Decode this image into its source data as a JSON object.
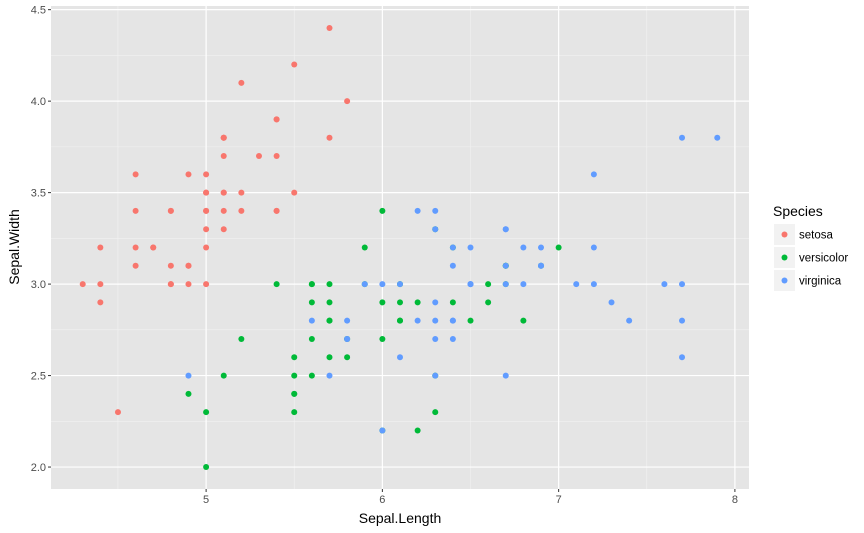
{
  "chart_data": {
    "type": "scatter",
    "title": "",
    "xlabel": "Sepal.Length",
    "ylabel": "Sepal.Width",
    "xlim": [
      4.12,
      8.08
    ],
    "ylim": [
      1.88,
      4.52
    ],
    "xticks": [
      "5",
      "6",
      "7",
      "8"
    ],
    "xtick_values": [
      5,
      6,
      7,
      8
    ],
    "yticks": [
      "2.0",
      "2.5",
      "3.0",
      "3.5",
      "4.0",
      "4.5"
    ],
    "ytick_values": [
      2.0,
      2.5,
      3.0,
      3.5,
      4.0,
      4.5
    ],
    "grid": true,
    "legend": {
      "title": "Species",
      "placement": "right"
    },
    "series": [
      {
        "name": "setosa",
        "color": "#F8766D",
        "points": [
          [
            5.1,
            3.5
          ],
          [
            4.9,
            3.0
          ],
          [
            4.7,
            3.2
          ],
          [
            4.6,
            3.1
          ],
          [
            5.0,
            3.6
          ],
          [
            5.4,
            3.9
          ],
          [
            4.6,
            3.4
          ],
          [
            5.0,
            3.4
          ],
          [
            4.4,
            2.9
          ],
          [
            4.9,
            3.1
          ],
          [
            5.4,
            3.7
          ],
          [
            4.8,
            3.4
          ],
          [
            4.8,
            3.0
          ],
          [
            4.3,
            3.0
          ],
          [
            5.8,
            4.0
          ],
          [
            5.7,
            4.4
          ],
          [
            5.4,
            3.9
          ],
          [
            5.1,
            3.5
          ],
          [
            5.7,
            3.8
          ],
          [
            5.1,
            3.8
          ],
          [
            5.4,
            3.4
          ],
          [
            5.1,
            3.7
          ],
          [
            4.6,
            3.6
          ],
          [
            5.1,
            3.3
          ],
          [
            4.8,
            3.4
          ],
          [
            5.0,
            3.0
          ],
          [
            5.0,
            3.4
          ],
          [
            5.2,
            3.5
          ],
          [
            5.2,
            3.4
          ],
          [
            4.7,
            3.2
          ],
          [
            4.8,
            3.1
          ],
          [
            5.4,
            3.4
          ],
          [
            5.2,
            4.1
          ],
          [
            5.5,
            4.2
          ],
          [
            4.9,
            3.1
          ],
          [
            5.0,
            3.2
          ],
          [
            5.5,
            3.5
          ],
          [
            4.9,
            3.6
          ],
          [
            4.4,
            3.0
          ],
          [
            5.1,
            3.4
          ],
          [
            5.0,
            3.5
          ],
          [
            4.5,
            2.3
          ],
          [
            4.4,
            3.2
          ],
          [
            5.0,
            3.5
          ],
          [
            5.1,
            3.8
          ],
          [
            4.8,
            3.0
          ],
          [
            5.1,
            3.8
          ],
          [
            4.6,
            3.2
          ],
          [
            5.3,
            3.7
          ],
          [
            5.0,
            3.3
          ]
        ]
      },
      {
        "name": "versicolor",
        "color": "#00BA38",
        "points": [
          [
            7.0,
            3.2
          ],
          [
            6.4,
            3.2
          ],
          [
            6.9,
            3.1
          ],
          [
            5.5,
            2.3
          ],
          [
            6.5,
            2.8
          ],
          [
            5.7,
            2.8
          ],
          [
            6.3,
            3.3
          ],
          [
            4.9,
            2.4
          ],
          [
            6.6,
            2.9
          ],
          [
            5.2,
            2.7
          ],
          [
            5.0,
            2.0
          ],
          [
            5.9,
            3.0
          ],
          [
            6.0,
            2.2
          ],
          [
            6.1,
            2.9
          ],
          [
            5.6,
            2.9
          ],
          [
            6.7,
            3.1
          ],
          [
            5.6,
            3.0
          ],
          [
            5.8,
            2.7
          ],
          [
            6.2,
            2.2
          ],
          [
            5.6,
            2.5
          ],
          [
            5.9,
            3.2
          ],
          [
            6.1,
            2.8
          ],
          [
            6.3,
            2.5
          ],
          [
            6.1,
            2.8
          ],
          [
            6.4,
            2.9
          ],
          [
            6.6,
            3.0
          ],
          [
            6.8,
            2.8
          ],
          [
            6.7,
            3.0
          ],
          [
            6.0,
            2.9
          ],
          [
            5.7,
            2.6
          ],
          [
            5.5,
            2.4
          ],
          [
            5.5,
            2.4
          ],
          [
            5.8,
            2.7
          ],
          [
            6.0,
            2.7
          ],
          [
            5.4,
            3.0
          ],
          [
            6.0,
            3.4
          ],
          [
            6.7,
            3.1
          ],
          [
            6.3,
            2.3
          ],
          [
            5.6,
            3.0
          ],
          [
            5.5,
            2.5
          ],
          [
            5.5,
            2.6
          ],
          [
            6.1,
            3.0
          ],
          [
            5.8,
            2.6
          ],
          [
            5.0,
            2.3
          ],
          [
            5.6,
            2.7
          ],
          [
            5.7,
            3.0
          ],
          [
            5.7,
            2.9
          ],
          [
            6.2,
            2.9
          ],
          [
            5.1,
            2.5
          ],
          [
            5.7,
            2.8
          ]
        ]
      },
      {
        "name": "virginica",
        "color": "#619CFF",
        "points": [
          [
            6.3,
            3.3
          ],
          [
            5.8,
            2.7
          ],
          [
            7.1,
            3.0
          ],
          [
            6.3,
            2.9
          ],
          [
            6.5,
            3.0
          ],
          [
            7.6,
            3.0
          ],
          [
            4.9,
            2.5
          ],
          [
            7.3,
            2.9
          ],
          [
            6.7,
            2.5
          ],
          [
            7.2,
            3.6
          ],
          [
            6.5,
            3.2
          ],
          [
            6.4,
            2.7
          ],
          [
            6.8,
            3.0
          ],
          [
            5.7,
            2.5
          ],
          [
            5.8,
            2.8
          ],
          [
            6.4,
            3.2
          ],
          [
            6.5,
            3.0
          ],
          [
            7.7,
            3.8
          ],
          [
            7.7,
            2.6
          ],
          [
            6.0,
            2.2
          ],
          [
            6.9,
            3.2
          ],
          [
            5.6,
            2.8
          ],
          [
            7.7,
            2.8
          ],
          [
            6.3,
            2.7
          ],
          [
            6.7,
            3.3
          ],
          [
            7.2,
            3.2
          ],
          [
            6.2,
            2.8
          ],
          [
            6.1,
            3.0
          ],
          [
            6.4,
            2.8
          ],
          [
            7.2,
            3.0
          ],
          [
            7.4,
            2.8
          ],
          [
            7.9,
            3.8
          ],
          [
            6.4,
            2.8
          ],
          [
            6.3,
            2.8
          ],
          [
            6.1,
            2.6
          ],
          [
            7.7,
            3.0
          ],
          [
            6.3,
            3.4
          ],
          [
            6.4,
            3.1
          ],
          [
            6.0,
            3.0
          ],
          [
            6.9,
            3.1
          ],
          [
            6.7,
            3.1
          ],
          [
            6.9,
            3.1
          ],
          [
            5.8,
            2.7
          ],
          [
            6.8,
            3.2
          ],
          [
            6.7,
            3.3
          ],
          [
            6.7,
            3.0
          ],
          [
            6.3,
            2.5
          ],
          [
            6.5,
            3.0
          ],
          [
            6.2,
            3.4
          ],
          [
            5.9,
            3.0
          ]
        ]
      }
    ]
  }
}
